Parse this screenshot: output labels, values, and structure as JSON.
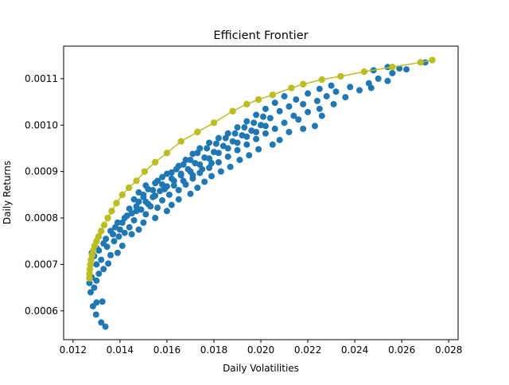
{
  "chart_data": {
    "type": "scatter",
    "title": "Efficient Frontier",
    "xlabel": "Daily Volatilities",
    "ylabel": "Daily Returns",
    "xlim": [
      0.0116,
      0.0284
    ],
    "ylim": [
      0.000538,
      0.00117
    ],
    "xticks": [
      0.012,
      0.014,
      0.016,
      0.018,
      0.02,
      0.022,
      0.024,
      0.026,
      0.028
    ],
    "xtick_labels": [
      "0.012",
      "0.014",
      "0.016",
      "0.018",
      "0.020",
      "0.022",
      "0.024",
      "0.026",
      "0.028"
    ],
    "yticks": [
      0.0006,
      0.0007,
      0.0008,
      0.0009,
      0.001,
      0.0011
    ],
    "ytick_labels": [
      "0.0006",
      "0.0007",
      "0.0008",
      "0.0009",
      "0.0010",
      "0.0011"
    ],
    "grid": false,
    "series": [
      {
        "kind": "scatter",
        "color": "#1f77b4",
        "points": [
          [
            0.01338,
            0.000566
          ],
          [
            0.0132,
            0.000575
          ],
          [
            0.01298,
            0.000592
          ],
          [
            0.01285,
            0.00061
          ],
          [
            0.013,
            0.000618
          ],
          [
            0.01325,
            0.00062
          ],
          [
            0.01275,
            0.00064
          ],
          [
            0.0129,
            0.00065
          ],
          [
            0.0127,
            0.00066
          ],
          [
            0.013,
            0.000665
          ],
          [
            0.0128,
            0.000672
          ],
          [
            0.0131,
            0.00068
          ],
          [
            0.0133,
            0.00069
          ],
          [
            0.013,
            0.0007
          ],
          [
            0.0135,
            0.000702
          ],
          [
            0.0132,
            0.00071
          ],
          [
            0.0129,
            0.000718
          ],
          [
            0.0136,
            0.00072
          ],
          [
            0.0131,
            0.00073
          ],
          [
            0.0139,
            0.000725
          ],
          [
            0.01345,
            0.000738
          ],
          [
            0.0141,
            0.00074
          ],
          [
            0.01375,
            0.00075
          ],
          [
            0.0133,
            0.000745
          ],
          [
            0.01395,
            0.00076
          ],
          [
            0.0145,
            0.000765
          ],
          [
            0.0142,
            0.000768
          ],
          [
            0.0136,
            0.000772
          ],
          [
            0.0148,
            0.000775
          ],
          [
            0.0144,
            0.00078
          ],
          [
            0.0139,
            0.00079
          ],
          [
            0.015,
            0.00079
          ],
          [
            0.0146,
            0.000795
          ],
          [
            0.0142,
            0.0008
          ],
          [
            0.0155,
            0.0008
          ],
          [
            0.0151,
            0.000808
          ],
          [
            0.0147,
            0.000815
          ],
          [
            0.016,
            0.000815
          ],
          [
            0.0144,
            0.00082
          ],
          [
            0.0156,
            0.000822
          ],
          [
            0.0162,
            0.000828
          ],
          [
            0.0152,
            0.00083
          ],
          [
            0.0148,
            0.000835
          ],
          [
            0.0158,
            0.000838
          ],
          [
            0.0165,
            0.00084
          ],
          [
            0.0154,
            0.000845
          ],
          [
            0.015,
            0.00085
          ],
          [
            0.0161,
            0.00085
          ],
          [
            0.017,
            0.000852
          ],
          [
            0.0157,
            0.000858
          ],
          [
            0.0165,
            0.00086
          ],
          [
            0.0152,
            0.000862
          ],
          [
            0.0173,
            0.000865
          ],
          [
            0.016,
            0.000868
          ],
          [
            0.0168,
            0.000872
          ],
          [
            0.0155,
            0.000875
          ],
          [
            0.0176,
            0.000878
          ],
          [
            0.0163,
            0.00088
          ],
          [
            0.0171,
            0.000885
          ],
          [
            0.0158,
            0.000888
          ],
          [
            0.0179,
            0.00089
          ],
          [
            0.0166,
            0.000892
          ],
          [
            0.0174,
            0.000897
          ],
          [
            0.0162,
            0.000898
          ],
          [
            0.0183,
            0.0009
          ],
          [
            0.0169,
            0.000905
          ],
          [
            0.0178,
            0.000908
          ],
          [
            0.0165,
            0.000912
          ],
          [
            0.0187,
            0.00091
          ],
          [
            0.0172,
            0.000918
          ],
          [
            0.0182,
            0.00092
          ],
          [
            0.0168,
            0.000925
          ],
          [
            0.0191,
            0.000925
          ],
          [
            0.0176,
            0.00093
          ],
          [
            0.0186,
            0.000932
          ],
          [
            0.0171,
            0.000938
          ],
          [
            0.0195,
            0.000935
          ],
          [
            0.018,
            0.000942
          ],
          [
            0.019,
            0.000946
          ],
          [
            0.0174,
            0.00095
          ],
          [
            0.0199,
            0.000948
          ],
          [
            0.0184,
            0.000955
          ],
          [
            0.0194,
            0.000958
          ],
          [
            0.0178,
            0.000962
          ],
          [
            0.0205,
            0.000958
          ],
          [
            0.0188,
            0.000965
          ],
          [
            0.0198,
            0.00097
          ],
          [
            0.0182,
            0.000972
          ],
          [
            0.0208,
            0.000968
          ],
          [
            0.0192,
            0.000978
          ],
          [
            0.0202,
            0.000982
          ],
          [
            0.0186,
            0.000982
          ],
          [
            0.0212,
            0.000985
          ],
          [
            0.0196,
            0.000988
          ],
          [
            0.0218,
            0.000992
          ],
          [
            0.0206,
            0.000992
          ],
          [
            0.019,
            0.000995
          ],
          [
            0.0223,
            0.000998
          ],
          [
            0.02,
            0.001
          ],
          [
            0.021,
            0.001005
          ],
          [
            0.0194,
            0.001008
          ],
          [
            0.0216,
            0.001012
          ],
          [
            0.0226,
            0.00102
          ],
          [
            0.0204,
            0.001015
          ],
          [
            0.0214,
            0.00102
          ],
          [
            0.0198,
            0.001022
          ],
          [
            0.022,
            0.001028
          ],
          [
            0.0208,
            0.00103
          ],
          [
            0.0225,
            0.001035
          ],
          [
            0.0202,
            0.001035
          ],
          [
            0.0212,
            0.00104
          ],
          [
            0.0231,
            0.001045
          ],
          [
            0.0218,
            0.001045
          ],
          [
            0.0206,
            0.001048
          ],
          [
            0.0224,
            0.001052
          ],
          [
            0.0215,
            0.001055
          ],
          [
            0.0236,
            0.00106
          ],
          [
            0.0228,
            0.001062
          ],
          [
            0.021,
            0.001062
          ],
          [
            0.022,
            0.001068
          ],
          [
            0.0242,
            0.001075
          ],
          [
            0.0232,
            0.001072
          ],
          [
            0.0225,
            0.001078
          ],
          [
            0.0247,
            0.00108
          ],
          [
            0.0238,
            0.001082
          ],
          [
            0.023,
            0.001085
          ],
          [
            0.0254,
            0.001095
          ],
          [
            0.0246,
            0.00109
          ],
          [
            0.025,
            0.0011
          ],
          [
            0.0256,
            0.001112
          ],
          [
            0.0262,
            0.00112
          ],
          [
            0.0248,
            0.001118
          ],
          [
            0.0254,
            0.001125
          ],
          [
            0.0259,
            0.001122
          ],
          [
            0.027,
            0.001135
          ],
          [
            0.0148,
            0.000855
          ],
          [
            0.0151,
            0.00087
          ],
          [
            0.0156,
            0.00088
          ],
          [
            0.016,
            0.000895
          ],
          [
            0.0164,
            0.000905
          ],
          [
            0.0167,
            0.000915
          ],
          [
            0.017,
            0.000925
          ],
          [
            0.0173,
            0.00094
          ],
          [
            0.0177,
            0.00095
          ],
          [
            0.0181,
            0.00096
          ],
          [
            0.0185,
            0.000972
          ],
          [
            0.0189,
            0.000982
          ],
          [
            0.0193,
            0.000995
          ],
          [
            0.0197,
            0.001005
          ],
          [
            0.0201,
            0.001018
          ],
          [
            0.0146,
            0.00084
          ],
          [
            0.015,
            0.000845
          ],
          [
            0.0154,
            0.00086
          ],
          [
            0.0158,
            0.000872
          ],
          [
            0.0162,
            0.000885
          ],
          [
            0.0166,
            0.000895
          ],
          [
            0.017,
            0.0009
          ],
          [
            0.0174,
            0.000915
          ],
          [
            0.0178,
            0.000928
          ],
          [
            0.0182,
            0.00094
          ],
          [
            0.0186,
            0.00095
          ],
          [
            0.019,
            0.000962
          ],
          [
            0.0194,
            0.000975
          ],
          [
            0.0198,
            0.000985
          ],
          [
            0.0202,
            0.000998
          ],
          [
            0.0143,
            0.000805
          ],
          [
            0.0147,
            0.000825
          ],
          [
            0.0151,
            0.000835
          ],
          [
            0.0155,
            0.000848
          ],
          [
            0.0159,
            0.000862
          ],
          [
            0.0163,
            0.00087
          ],
          [
            0.0167,
            0.00088
          ],
          [
            0.0171,
            0.000892
          ],
          [
            0.0175,
            0.000905
          ],
          [
            0.0179,
            0.000918
          ],
          [
            0.0138,
            0.00078
          ],
          [
            0.0141,
            0.00079
          ],
          [
            0.0145,
            0.00081
          ],
          [
            0.0149,
            0.000818
          ],
          [
            0.0153,
            0.000825
          ],
          [
            0.0134,
            0.000755
          ],
          [
            0.0137,
            0.000765
          ],
          [
            0.014,
            0.000775
          ],
          [
            0.013,
            0.000735
          ],
          [
            0.0128,
            0.000725
          ]
        ]
      },
      {
        "kind": "line",
        "marker": "circle",
        "color": "#bcbd22",
        "points": [
          [
            0.0127,
            0.00067
          ],
          [
            0.0127,
            0.00068
          ],
          [
            0.01272,
            0.00069
          ],
          [
            0.01274,
            0.0007
          ],
          [
            0.01277,
            0.00071
          ],
          [
            0.01281,
            0.00072
          ],
          [
            0.01286,
            0.00073
          ],
          [
            0.01292,
            0.00074
          ],
          [
            0.013,
            0.00075
          ],
          [
            0.01309,
            0.00076
          ],
          [
            0.0132,
            0.000772
          ],
          [
            0.01333,
            0.000785
          ],
          [
            0.01348,
            0.0008
          ],
          [
            0.01365,
            0.000815
          ],
          [
            0.01385,
            0.000832
          ],
          [
            0.0141,
            0.00085
          ],
          [
            0.01438,
            0.000865
          ],
          [
            0.0147,
            0.00088
          ],
          [
            0.01505,
            0.0009
          ],
          [
            0.0155,
            0.00092
          ],
          [
            0.016,
            0.00094
          ],
          [
            0.0166,
            0.000965
          ],
          [
            0.0173,
            0.000985
          ],
          [
            0.018,
            0.001005
          ],
          [
            0.0188,
            0.00103
          ],
          [
            0.0194,
            0.001045
          ],
          [
            0.0199,
            0.001055
          ],
          [
            0.0205,
            0.001065
          ],
          [
            0.0213,
            0.00108
          ],
          [
            0.0218,
            0.001088
          ],
          [
            0.0226,
            0.001098
          ],
          [
            0.0234,
            0.001105
          ],
          [
            0.0244,
            0.001115
          ],
          [
            0.0256,
            0.001125
          ],
          [
            0.0268,
            0.001135
          ],
          [
            0.0273,
            0.00114
          ]
        ]
      }
    ]
  }
}
